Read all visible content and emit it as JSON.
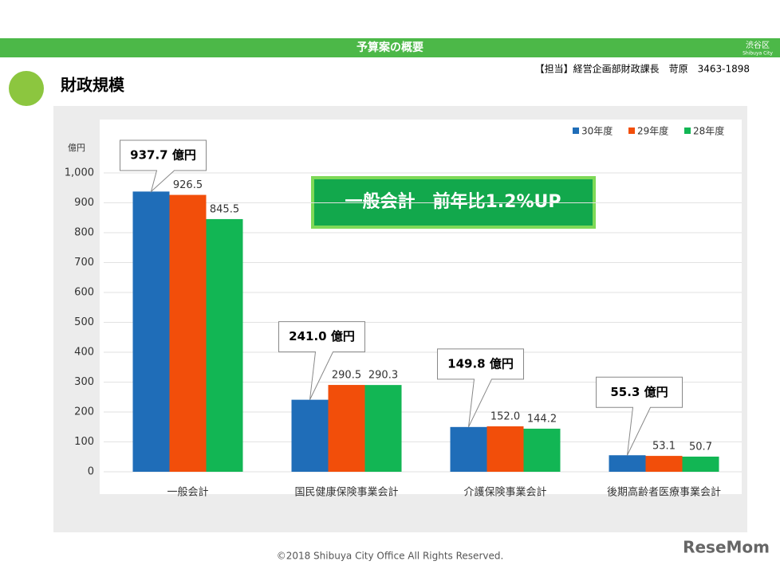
{
  "header": {
    "title": "予算案の概要",
    "logo": "渋谷区",
    "logo_sub": "Shibuya City",
    "contact": "【担当】経営企画部財政課長　苛原　3463-1898",
    "heading": "財政規模"
  },
  "chart_data": {
    "type": "bar",
    "y_unit": "億円",
    "annotation": "一般会計　前年比1.2%UP",
    "categories": [
      "一般会計",
      "国民健康保険事業会計",
      "介護保険事業会計",
      "後期高齢者医療事業会計"
    ],
    "series": [
      {
        "name": "30年度",
        "color": "#1f6db8",
        "values": [
          937.7,
          241.0,
          149.8,
          55.3
        ],
        "value_labels": [
          "937.7 億円",
          "241.0 億円",
          "149.8 億円",
          "55.3 億円"
        ]
      },
      {
        "name": "29年度",
        "color": "#f24e0a",
        "values": [
          926.5,
          290.5,
          152.0,
          53.1
        ],
        "value_labels": [
          "926.5",
          "290.5",
          "152.0",
          "53.1"
        ]
      },
      {
        "name": "28年度",
        "color": "#12b654",
        "values": [
          845.5,
          290.3,
          144.2,
          50.7
        ],
        "value_labels": [
          "845.5",
          "290.3",
          "144.2",
          "50.7"
        ]
      }
    ],
    "ylim": [
      0,
      1000
    ],
    "yticks": [
      0,
      100,
      200,
      300,
      400,
      500,
      600,
      700,
      800,
      900,
      {
        "value": 1000,
        "label": "1,000"
      }
    ],
    "grid": true,
    "legend": "top-right"
  },
  "footer": {
    "copyright": "©2018 Shibuya City Office All Rights Reserved.",
    "watermark": "ReseMom"
  }
}
